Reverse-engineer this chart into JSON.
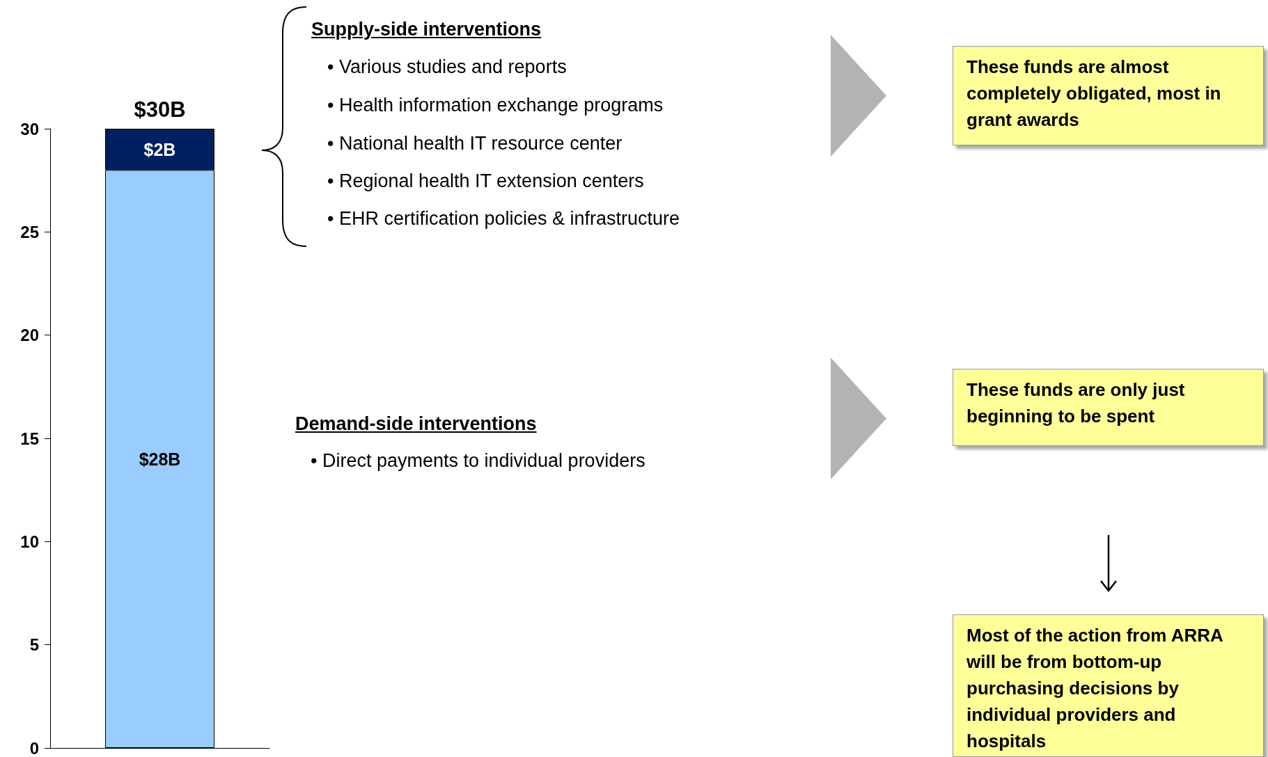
{
  "chart_data": {
    "type": "bar",
    "stacked": true,
    "categories": [
      null
    ],
    "series": [
      {
        "color": "#99ccff",
        "values": [
          28
        ],
        "value_labels": [
          "$28B"
        ]
      },
      {
        "color": "#002060",
        "values": [
          2
        ],
        "value_labels": [
          "$2B"
        ]
      }
    ],
    "totals": [
      "$30B"
    ],
    "ylim": [
      0,
      30
    ],
    "yticks": [
      0,
      5,
      10,
      15,
      20,
      25,
      30
    ],
    "grid": false,
    "annotations": [
      "Supply-side interventions",
      "• Various studies and reports",
      "• Health information exchange programs",
      "• National health IT resource center",
      "• Regional health IT extension centers",
      "• EHR certification policies & infrastructure",
      "Demand-side interventions",
      "• Direct payments to individual providers",
      "These funds are almost completely obligated, most in grant awards",
      "These funds are only just beginning to be spent",
      "Most of the action from ARRA will be from bottom-up purchasing decisions by individual providers and hospitals"
    ]
  }
}
